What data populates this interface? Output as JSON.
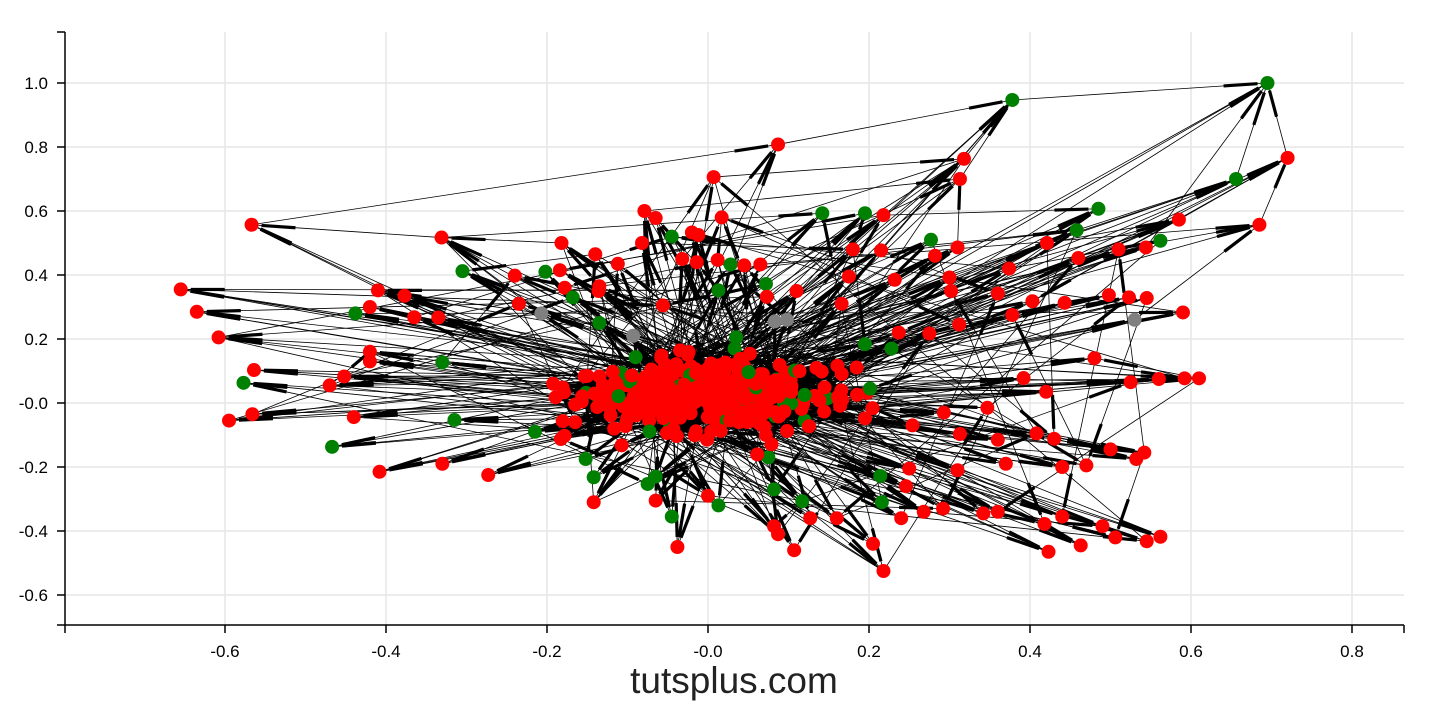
{
  "watermark": "tutsplus.com",
  "chart_data": {
    "type": "scatter",
    "title": "",
    "xlabel": "",
    "ylabel": "",
    "xlim": [
      -0.8,
      0.86
    ],
    "ylim": [
      -0.69,
      1.16
    ],
    "grid": true,
    "xticks": [
      -0.6,
      -0.4,
      -0.2,
      0.0,
      0.2,
      0.4,
      0.6,
      0.8
    ],
    "xtick_labels": [
      "-0.6",
      "-0.4",
      "-0.2",
      "-0.0",
      "0.2",
      "0.4",
      "0.6",
      "0.8"
    ],
    "yticks": [
      1.0,
      0.8,
      0.6,
      0.4,
      0.2,
      0.0,
      -0.2,
      -0.4,
      -0.6
    ],
    "ytick_labels": [
      "1.0",
      "0.8",
      "0.6",
      "0.4",
      "0.2",
      "-0.0",
      "-0.2",
      "-0.4",
      "-0.6"
    ],
    "colors": {
      "red": "#ff0000",
      "green": "#008000",
      "gray": "#808080",
      "edge": "#000000"
    },
    "node_count_estimate": 520,
    "nodes": [
      {
        "x": 0.695,
        "y": 1.0,
        "c": "green"
      },
      {
        "x": 0.378,
        "y": 0.947,
        "c": "green"
      },
      {
        "x": 0.72,
        "y": 0.766,
        "c": "red"
      },
      {
        "x": 0.087,
        "y": 0.808,
        "c": "red"
      },
      {
        "x": 0.318,
        "y": 0.763,
        "c": "red"
      },
      {
        "x": 0.656,
        "y": 0.7,
        "c": "green"
      },
      {
        "x": 0.313,
        "y": 0.7,
        "c": "red"
      },
      {
        "x": 0.007,
        "y": 0.706,
        "c": "red"
      },
      {
        "x": 0.485,
        "y": 0.607,
        "c": "green"
      },
      {
        "x": 0.142,
        "y": 0.593,
        "c": "green"
      },
      {
        "x": 0.195,
        "y": 0.593,
        "c": "green"
      },
      {
        "x": 0.218,
        "y": 0.587,
        "c": "red"
      },
      {
        "x": 0.585,
        "y": 0.573,
        "c": "red"
      },
      {
        "x": 0.685,
        "y": 0.557,
        "c": "red"
      },
      {
        "x": 0.458,
        "y": 0.54,
        "c": "green"
      },
      {
        "x": 0.277,
        "y": 0.51,
        "c": "green"
      },
      {
        "x": 0.31,
        "y": 0.486,
        "c": "red"
      },
      {
        "x": 0.421,
        "y": 0.5,
        "c": "red"
      },
      {
        "x": 0.562,
        "y": 0.507,
        "c": "green"
      },
      {
        "x": 0.544,
        "y": 0.486,
        "c": "red"
      },
      {
        "x": 0.51,
        "y": 0.48,
        "c": "red"
      },
      {
        "x": -0.567,
        "y": 0.557,
        "c": "red"
      },
      {
        "x": -0.331,
        "y": 0.517,
        "c": "red"
      },
      {
        "x": -0.182,
        "y": 0.5,
        "c": "red"
      },
      {
        "x": -0.079,
        "y": 0.6,
        "c": "red"
      },
      {
        "x": -0.065,
        "y": 0.578,
        "c": "red"
      },
      {
        "x": 0.017,
        "y": 0.58,
        "c": "red"
      },
      {
        "x": -0.045,
        "y": 0.52,
        "c": "green"
      },
      {
        "x": -0.02,
        "y": 0.533,
        "c": "red"
      },
      {
        "x": -0.012,
        "y": 0.525,
        "c": "red"
      },
      {
        "x": -0.082,
        "y": 0.5,
        "c": "red"
      },
      {
        "x": -0.655,
        "y": 0.355,
        "c": "red"
      },
      {
        "x": -0.635,
        "y": 0.285,
        "c": "red"
      },
      {
        "x": -0.608,
        "y": 0.205,
        "c": "red"
      },
      {
        "x": -0.305,
        "y": 0.412,
        "c": "green"
      },
      {
        "x": -0.24,
        "y": 0.398,
        "c": "red"
      },
      {
        "x": -0.202,
        "y": 0.41,
        "c": "green"
      },
      {
        "x": -0.184,
        "y": 0.415,
        "c": "red"
      },
      {
        "x": -0.14,
        "y": 0.465,
        "c": "red"
      },
      {
        "x": -0.112,
        "y": 0.435,
        "c": "red"
      },
      {
        "x": -0.032,
        "y": 0.45,
        "c": "red"
      },
      {
        "x": -0.014,
        "y": 0.44,
        "c": "red"
      },
      {
        "x": 0.012,
        "y": 0.447,
        "c": "red"
      },
      {
        "x": 0.028,
        "y": 0.433,
        "c": "green"
      },
      {
        "x": 0.045,
        "y": 0.43,
        "c": "red"
      },
      {
        "x": 0.065,
        "y": 0.433,
        "c": "red"
      },
      {
        "x": 0.18,
        "y": 0.48,
        "c": "red"
      },
      {
        "x": 0.215,
        "y": 0.477,
        "c": "red"
      },
      {
        "x": 0.282,
        "y": 0.46,
        "c": "red"
      },
      {
        "x": 0.374,
        "y": 0.42,
        "c": "red"
      },
      {
        "x": 0.46,
        "y": 0.453,
        "c": "red"
      },
      {
        "x": -0.41,
        "y": 0.352,
        "c": "red"
      },
      {
        "x": -0.377,
        "y": 0.335,
        "c": "red"
      },
      {
        "x": -0.42,
        "y": 0.3,
        "c": "red"
      },
      {
        "x": -0.438,
        "y": 0.28,
        "c": "green"
      },
      {
        "x": -0.365,
        "y": 0.268,
        "c": "red"
      },
      {
        "x": -0.235,
        "y": 0.31,
        "c": "red"
      },
      {
        "x": -0.207,
        "y": 0.28,
        "c": "gray"
      },
      {
        "x": -0.178,
        "y": 0.36,
        "c": "red"
      },
      {
        "x": -0.168,
        "y": 0.33,
        "c": "green"
      },
      {
        "x": -0.135,
        "y": 0.365,
        "c": "red"
      },
      {
        "x": -0.136,
        "y": 0.35,
        "c": "red"
      },
      {
        "x": -0.056,
        "y": 0.305,
        "c": "red"
      },
      {
        "x": 0.013,
        "y": 0.352,
        "c": "green"
      },
      {
        "x": 0.072,
        "y": 0.372,
        "c": "green"
      },
      {
        "x": 0.073,
        "y": 0.332,
        "c": "red"
      },
      {
        "x": 0.11,
        "y": 0.35,
        "c": "red"
      },
      {
        "x": 0.175,
        "y": 0.395,
        "c": "red"
      },
      {
        "x": 0.232,
        "y": 0.385,
        "c": "red"
      },
      {
        "x": 0.3,
        "y": 0.392,
        "c": "red"
      },
      {
        "x": 0.302,
        "y": 0.35,
        "c": "red"
      },
      {
        "x": 0.36,
        "y": 0.342,
        "c": "red"
      },
      {
        "x": 0.403,
        "y": 0.318,
        "c": "red"
      },
      {
        "x": 0.443,
        "y": 0.313,
        "c": "red"
      },
      {
        "x": 0.498,
        "y": 0.337,
        "c": "red"
      },
      {
        "x": 0.523,
        "y": 0.33,
        "c": "red"
      },
      {
        "x": 0.545,
        "y": 0.328,
        "c": "red"
      },
      {
        "x": 0.59,
        "y": 0.283,
        "c": "red"
      },
      {
        "x": 0.53,
        "y": 0.26,
        "c": "gray"
      },
      {
        "x": 0.098,
        "y": 0.26,
        "c": "gray"
      },
      {
        "x": 0.083,
        "y": 0.255,
        "c": "gray"
      },
      {
        "x": -0.093,
        "y": 0.21,
        "c": "gray"
      },
      {
        "x": 0.166,
        "y": 0.31,
        "c": "red"
      },
      {
        "x": 0.237,
        "y": 0.22,
        "c": "red"
      },
      {
        "x": 0.275,
        "y": 0.217,
        "c": "red"
      },
      {
        "x": 0.312,
        "y": 0.245,
        "c": "red"
      },
      {
        "x": 0.378,
        "y": 0.275,
        "c": "red"
      },
      {
        "x": -0.335,
        "y": 0.267,
        "c": "red"
      },
      {
        "x": -0.42,
        "y": 0.16,
        "c": "red"
      },
      {
        "x": -0.42,
        "y": 0.13,
        "c": "red"
      },
      {
        "x": -0.564,
        "y": 0.103,
        "c": "red"
      },
      {
        "x": -0.577,
        "y": 0.063,
        "c": "green"
      },
      {
        "x": -0.452,
        "y": 0.083,
        "c": "red"
      },
      {
        "x": -0.47,
        "y": 0.055,
        "c": "red"
      },
      {
        "x": -0.566,
        "y": -0.035,
        "c": "red"
      },
      {
        "x": -0.595,
        "y": -0.055,
        "c": "red"
      },
      {
        "x": -0.44,
        "y": -0.044,
        "c": "red"
      },
      {
        "x": -0.467,
        "y": -0.137,
        "c": "green"
      },
      {
        "x": -0.408,
        "y": -0.215,
        "c": "red"
      },
      {
        "x": -0.33,
        "y": -0.19,
        "c": "red"
      },
      {
        "x": -0.273,
        "y": -0.225,
        "c": "red"
      },
      {
        "x": -0.165,
        "y": -0.06,
        "c": "red"
      },
      {
        "x": 0.0,
        "y": -0.29,
        "c": "red"
      },
      {
        "x": 0.082,
        "y": -0.385,
        "c": "red"
      },
      {
        "x": 0.107,
        "y": -0.46,
        "c": "red"
      },
      {
        "x": -0.038,
        "y": -0.45,
        "c": "red"
      },
      {
        "x": 0.218,
        "y": -0.525,
        "c": "red"
      },
      {
        "x": 0.205,
        "y": -0.44,
        "c": "red"
      },
      {
        "x": 0.423,
        "y": -0.465,
        "c": "red"
      },
      {
        "x": 0.463,
        "y": -0.445,
        "c": "red"
      },
      {
        "x": 0.545,
        "y": -0.432,
        "c": "red"
      },
      {
        "x": 0.562,
        "y": -0.418,
        "c": "red"
      },
      {
        "x": 0.506,
        "y": -0.42,
        "c": "red"
      },
      {
        "x": 0.49,
        "y": -0.385,
        "c": "red"
      },
      {
        "x": -0.045,
        "y": -0.355,
        "c": "green"
      },
      {
        "x": 0.013,
        "y": -0.32,
        "c": "green"
      },
      {
        "x": 0.117,
        "y": -0.307,
        "c": "green"
      },
      {
        "x": 0.216,
        "y": -0.31,
        "c": "green"
      },
      {
        "x": -0.142,
        "y": -0.232,
        "c": "green"
      },
      {
        "x": -0.075,
        "y": -0.253,
        "c": "green"
      },
      {
        "x": 0.082,
        "y": -0.27,
        "c": "green"
      },
      {
        "x": 0.214,
        "y": -0.228,
        "c": "green"
      },
      {
        "x": -0.315,
        "y": -0.053,
        "c": "green"
      },
      {
        "x": -0.33,
        "y": 0.127,
        "c": "green"
      },
      {
        "x": 0.195,
        "y": 0.184,
        "c": "green"
      },
      {
        "x": 0.228,
        "y": 0.17,
        "c": "green"
      },
      {
        "x": 0.033,
        "y": 0.17,
        "c": "green"
      },
      {
        "x": -0.135,
        "y": 0.25,
        "c": "green"
      },
      {
        "x": -0.09,
        "y": 0.143,
        "c": "green"
      },
      {
        "x": -0.09,
        "y": 0.013,
        "c": "green"
      },
      {
        "x": -0.065,
        "y": -0.23,
        "c": "green"
      },
      {
        "x": 0.12,
        "y": -0.055,
        "c": "green"
      },
      {
        "x": -0.152,
        "y": -0.175,
        "c": "green"
      },
      {
        "x": -0.215,
        "y": -0.09,
        "c": "green"
      },
      {
        "x": 0.075,
        "y": -0.17,
        "c": "green"
      },
      {
        "x": 0.035,
        "y": 0.205,
        "c": "green"
      },
      {
        "x": 0.05,
        "y": 0.065,
        "c": "green"
      },
      {
        "x": 0.48,
        "y": 0.14,
        "c": "red"
      },
      {
        "x": 0.525,
        "y": 0.065,
        "c": "red"
      },
      {
        "x": 0.56,
        "y": 0.075,
        "c": "red"
      },
      {
        "x": 0.592,
        "y": 0.077,
        "c": "red"
      },
      {
        "x": 0.61,
        "y": 0.077,
        "c": "red"
      },
      {
        "x": 0.392,
        "y": 0.078,
        "c": "red"
      },
      {
        "x": 0.42,
        "y": 0.035,
        "c": "red"
      },
      {
        "x": 0.347,
        "y": -0.015,
        "c": "red"
      },
      {
        "x": 0.293,
        "y": -0.03,
        "c": "red"
      },
      {
        "x": 0.254,
        "y": -0.07,
        "c": "red"
      },
      {
        "x": 0.313,
        "y": -0.097,
        "c": "red"
      },
      {
        "x": 0.36,
        "y": -0.115,
        "c": "red"
      },
      {
        "x": 0.408,
        "y": -0.095,
        "c": "red"
      },
      {
        "x": 0.43,
        "y": -0.112,
        "c": "red"
      },
      {
        "x": 0.5,
        "y": -0.145,
        "c": "red"
      },
      {
        "x": 0.542,
        "y": -0.155,
        "c": "red"
      },
      {
        "x": 0.532,
        "y": -0.175,
        "c": "red"
      },
      {
        "x": 0.47,
        "y": -0.195,
        "c": "red"
      },
      {
        "x": 0.44,
        "y": -0.2,
        "c": "red"
      },
      {
        "x": 0.37,
        "y": -0.19,
        "c": "red"
      },
      {
        "x": 0.31,
        "y": -0.21,
        "c": "red"
      },
      {
        "x": 0.25,
        "y": -0.205,
        "c": "red"
      },
      {
        "x": 0.246,
        "y": -0.26,
        "c": "red"
      },
      {
        "x": 0.36,
        "y": -0.34,
        "c": "red"
      },
      {
        "x": 0.342,
        "y": -0.345,
        "c": "red"
      },
      {
        "x": 0.292,
        "y": -0.33,
        "c": "red"
      },
      {
        "x": 0.268,
        "y": -0.34,
        "c": "red"
      },
      {
        "x": 0.24,
        "y": -0.36,
        "c": "red"
      },
      {
        "x": 0.44,
        "y": -0.355,
        "c": "red"
      },
      {
        "x": 0.418,
        "y": -0.378,
        "c": "red"
      },
      {
        "x": 0.16,
        "y": -0.36,
        "c": "red"
      },
      {
        "x": 0.127,
        "y": -0.36,
        "c": "red"
      },
      {
        "x": -0.142,
        "y": -0.31,
        "c": "red"
      },
      {
        "x": -0.065,
        "y": -0.305,
        "c": "red"
      },
      {
        "x": 0.087,
        "y": -0.41,
        "c": "red"
      }
    ],
    "dense_core": {
      "description": "",
      "x_center": 0.0,
      "y_center": 0.02,
      "x_range": [
        -0.36,
        0.36
      ],
      "y_range": [
        -0.34,
        0.34
      ],
      "count": 340
    },
    "hub_edges": [
      [
        0,
        1
      ],
      [
        0,
        2
      ],
      [
        0,
        5
      ],
      [
        1,
        3
      ],
      [
        1,
        4
      ],
      [
        1,
        6
      ],
      [
        2,
        13
      ],
      [
        2,
        12
      ],
      [
        3,
        21
      ],
      [
        4,
        7
      ],
      [
        0,
        19
      ],
      [
        5,
        14
      ],
      [
        8,
        11
      ],
      [
        9,
        22
      ],
      [
        10,
        46
      ],
      [
        12,
        17
      ],
      [
        13,
        20
      ],
      [
        21,
        22
      ],
      [
        22,
        23
      ],
      [
        31,
        63
      ],
      [
        32,
        65
      ],
      [
        33,
        62
      ],
      [
        34,
        38
      ],
      [
        51,
        57
      ],
      [
        14,
        47
      ],
      [
        18,
        49
      ],
      [
        6,
        16
      ]
    ]
  }
}
